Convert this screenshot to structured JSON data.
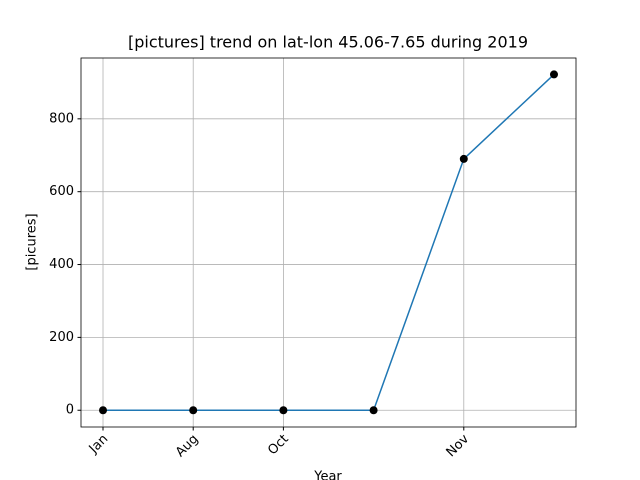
{
  "chart_data": {
    "type": "line",
    "title": "[pictures] trend on lat-lon 45.06-7.65 during 2019",
    "x_label": "Year",
    "y_label": "[picures]",
    "categories": [
      "Jan",
      "Aug",
      "Oct",
      null,
      "Nov",
      null
    ],
    "series": [
      {
        "color": "#1f77b4",
        "marker_color": "#000000",
        "values": [
          0,
          0,
          0,
          0,
          690,
          922
        ]
      }
    ],
    "ylim": [
      -46,
      967
    ],
    "yticks": [
      0,
      200,
      400,
      600,
      800
    ],
    "grid": true
  }
}
